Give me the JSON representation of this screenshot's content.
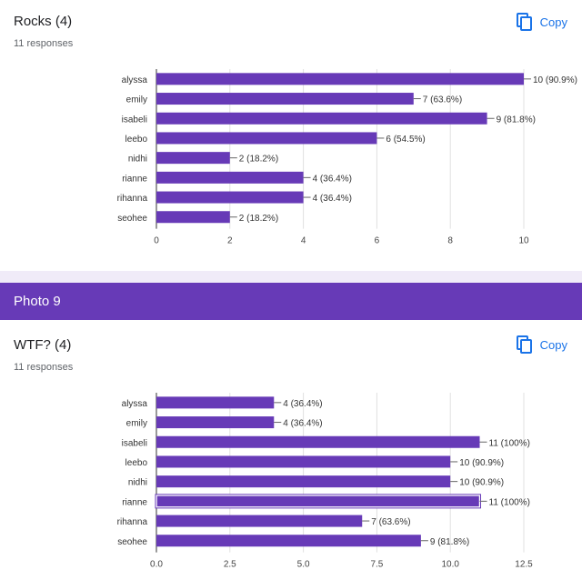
{
  "section": {
    "title": "Photo 9"
  },
  "copy_label": "Copy",
  "icons": {
    "copy": "copy-icon"
  },
  "colors": {
    "bar": "#673ab7",
    "header": "#673ab7",
    "copy": "#1a73e8"
  },
  "questions": [
    {
      "title": "Rocks (4)",
      "responses": "11 responses"
    },
    {
      "title": "WTF? (4)",
      "responses": "11 responses"
    }
  ],
  "chart_data": [
    {
      "type": "bar",
      "orientation": "horizontal",
      "categories": [
        "alyssa",
        "emily",
        "isabeli",
        "leebo",
        "nidhi",
        "rianne",
        "rihanna",
        "seohee"
      ],
      "values": [
        10,
        7,
        9,
        6,
        2,
        4,
        4,
        2
      ],
      "labels": [
        "10 (90.9%)",
        "7 (63.6%)",
        "9 (81.8%)",
        "6 (54.5%)",
        "2 (18.2%)",
        "4 (36.4%)",
        "4 (36.4%)",
        "2 (18.2%)"
      ],
      "xlim": [
        0,
        10
      ],
      "xticks": [
        "0",
        "2",
        "4",
        "6",
        "8",
        "10"
      ],
      "grid": true
    },
    {
      "type": "bar",
      "orientation": "horizontal",
      "categories": [
        "alyssa",
        "emily",
        "isabeli",
        "leebo",
        "nidhi",
        "rianne",
        "rihanna",
        "seohee"
      ],
      "values": [
        4,
        4,
        11,
        10,
        10,
        11,
        7,
        9
      ],
      "labels": [
        "4 (36.4%)",
        "4 (36.4%)",
        "11 (100%)",
        "10 (90.9%)",
        "10 (90.9%)",
        "11 (100%)",
        "7 (63.6%)",
        "9 (81.8%)"
      ],
      "xlim": [
        0,
        12.5
      ],
      "xticks": [
        "0.0",
        "2.5",
        "5.0",
        "7.5",
        "10.0",
        "12.5"
      ],
      "grid": true,
      "highlighted": "rianne"
    }
  ]
}
